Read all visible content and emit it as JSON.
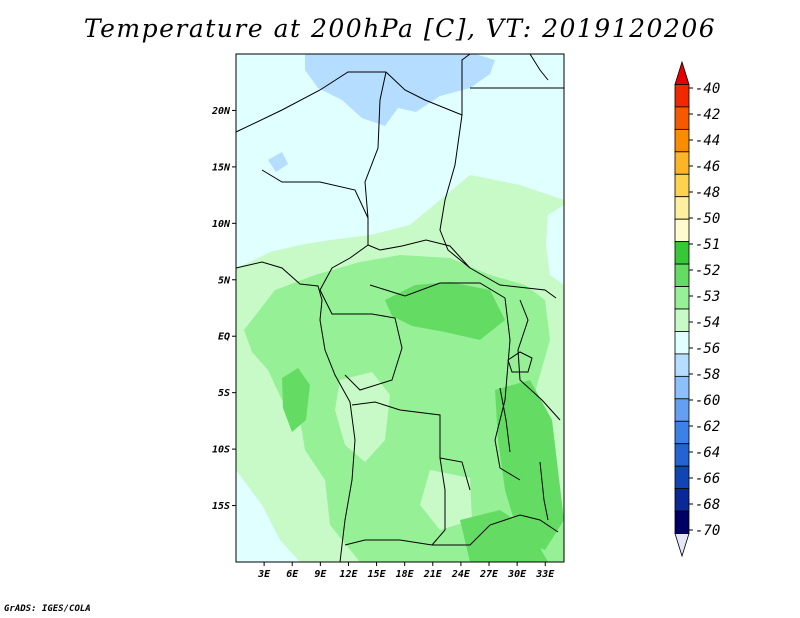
{
  "title": "Temperature at 200hPa [C], VT: 2019120206",
  "credit": "GrADS: IGES/COLA",
  "map": {
    "lon_range": [
      0,
      35
    ],
    "lat_range": [
      -20,
      25
    ],
    "lat_ticks": [
      {
        "value": 20,
        "label": "20N"
      },
      {
        "value": 15,
        "label": "15N"
      },
      {
        "value": 10,
        "label": "10N"
      },
      {
        "value": 5,
        "label": "5N"
      },
      {
        "value": 0,
        "label": "EQ"
      },
      {
        "value": -5,
        "label": "5S"
      },
      {
        "value": -10,
        "label": "10S"
      },
      {
        "value": -15,
        "label": "15S"
      }
    ],
    "lon_ticks": [
      {
        "value": 3,
        "label": "3E"
      },
      {
        "value": 6,
        "label": "6E"
      },
      {
        "value": 9,
        "label": "9E"
      },
      {
        "value": 12,
        "label": "12E"
      },
      {
        "value": 15,
        "label": "15E"
      },
      {
        "value": 18,
        "label": "18E"
      },
      {
        "value": 21,
        "label": "21E"
      },
      {
        "value": 24,
        "label": "24E"
      },
      {
        "value": 27,
        "label": "27E"
      },
      {
        "value": 30,
        "label": "30E"
      },
      {
        "value": 33,
        "label": "33E"
      }
    ]
  },
  "colorbar": {
    "labels": [
      "-40",
      "-42",
      "-44",
      "-46",
      "-48",
      "-50",
      "-51",
      "-52",
      "-53",
      "-54",
      "-56",
      "-58",
      "-60",
      "-62",
      "-64",
      "-66",
      "-68",
      "-70"
    ],
    "colors": [
      "#e60000",
      "#f02800",
      "#f55a00",
      "#fa8c00",
      "#fcb428",
      "#fcd250",
      "#fff0a0",
      "#fffbcc",
      "#37c837",
      "#64dc64",
      "#96f096",
      "#c8fac8",
      "#e0ffff",
      "#b4ddff",
      "#8cc0fa",
      "#64a0f0",
      "#3c82e6",
      "#2364d2",
      "#0f46b4",
      "#0a2896",
      "#000064",
      "#e6e6fa"
    ]
  },
  "field_colors": {
    "t_m54_m53": "#e0ffff",
    "t_m53_m52": "#c8fac8",
    "t_m52_m51": "#96f096",
    "t_m51_m50": "#64dc64",
    "t_m56_m54": "#b4ddff"
  }
}
